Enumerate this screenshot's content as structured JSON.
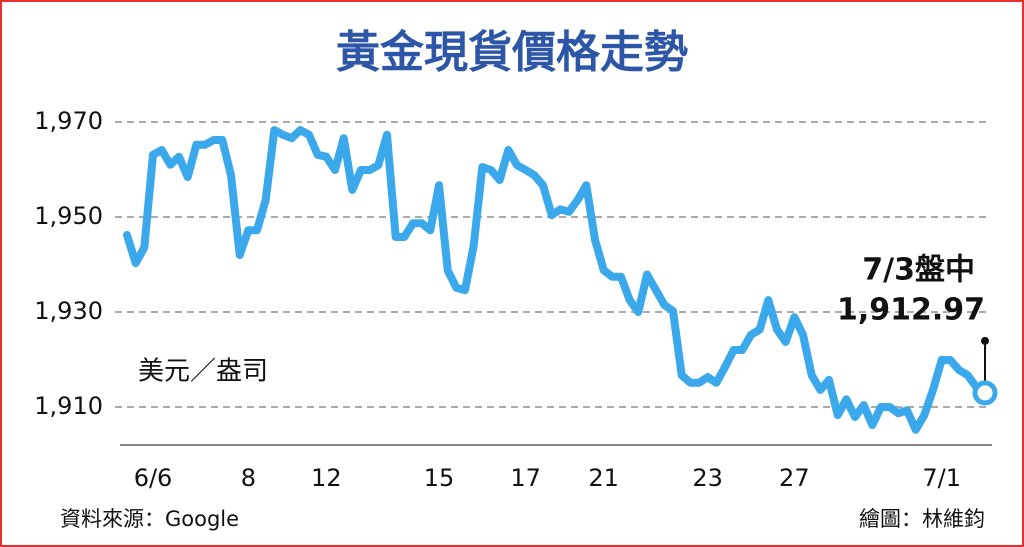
{
  "chart_data": {
    "type": "line",
    "title": "黃金現貨價格走勢",
    "y_label": "美元／盎司",
    "annotation": "7/3盤中",
    "source": "資料來源：Google",
    "credit": "繪圖：林維鈞",
    "categories": [
      null,
      null,
      null,
      "6/6",
      null,
      null,
      null,
      null,
      null,
      null,
      null,
      null,
      null,
      null,
      "8",
      null,
      null,
      null,
      null,
      null,
      null,
      null,
      null,
      "12",
      null,
      null,
      null,
      null,
      null,
      null,
      null,
      null,
      null,
      null,
      null,
      null,
      "15",
      null,
      null,
      null,
      null,
      null,
      null,
      null,
      null,
      null,
      "17",
      null,
      null,
      null,
      null,
      null,
      null,
      null,
      null,
      "21",
      null,
      null,
      null,
      null,
      null,
      null,
      null,
      null,
      null,
      null,
      null,
      "23",
      null,
      null,
      null,
      null,
      null,
      null,
      null,
      null,
      null,
      "27",
      null,
      null,
      null,
      null,
      null,
      null,
      null,
      null,
      null,
      null,
      null,
      null,
      null,
      null,
      null,
      null,
      "7/1",
      null,
      null,
      null,
      null,
      null
    ],
    "series": [
      {
        "name": "黃金現貨",
        "color": "#3aa8ea",
        "values": [
          1946.2,
          1940.3,
          1943.6,
          1963.1,
          1964.1,
          1961,
          1962.7,
          1958.4,
          1965.2,
          1965.2,
          1966.2,
          1966.2,
          1958.8,
          1942,
          1947.2,
          1947.2,
          1953.6,
          1968.3,
          1967.3,
          1966.6,
          1968.3,
          1967.3,
          1963.1,
          1962.7,
          1959.9,
          1966.6,
          1955.7,
          1959.9,
          1959.9,
          1960.9,
          1967.3,
          1945.8,
          1945.8,
          1948.7,
          1948.7,
          1947.2,
          1956.7,
          1938.8,
          1935.1,
          1934.6,
          1944,
          1960.5,
          1959.9,
          1957.8,
          1964.1,
          1960.9,
          1959.9,
          1958.8,
          1956.7,
          1950.4,
          1951.6,
          1951.1,
          1953.6,
          1956.7,
          1945.2,
          1938.8,
          1937.4,
          1937.4,
          1932.5,
          1930,
          1937.9,
          1934.7,
          1931.5,
          1930.2,
          1916.7,
          1915.1,
          1915.1,
          1916.3,
          1915.1,
          1918.4,
          1922,
          1922,
          1925.2,
          1926.3,
          1932.5,
          1926.3,
          1923.7,
          1928.9,
          1925.2,
          1916.7,
          1913.6,
          1915.7,
          1908.3,
          1911.6,
          1907.9,
          1910.4,
          1906.2,
          1910,
          1910,
          1908.7,
          1909.3,
          1905.2,
          1908.3,
          1913.6,
          1919.9,
          1919.9,
          1917.8,
          1916.7,
          1914.2,
          1912.97
        ],
        "value_labels": [
          null,
          null,
          null,
          null,
          null,
          null,
          null,
          null,
          null,
          null,
          null,
          null,
          null,
          null,
          null,
          null,
          null,
          null,
          null,
          null,
          null,
          null,
          null,
          null,
          null,
          null,
          null,
          null,
          null,
          null,
          null,
          null,
          null,
          null,
          null,
          null,
          null,
          null,
          null,
          null,
          null,
          null,
          null,
          null,
          null,
          null,
          null,
          null,
          null,
          null,
          null,
          null,
          null,
          null,
          null,
          null,
          null,
          null,
          null,
          null,
          null,
          null,
          null,
          null,
          null,
          null,
          null,
          null,
          null,
          null,
          null,
          null,
          null,
          null,
          null,
          null,
          null,
          null,
          null,
          null,
          null,
          null,
          null,
          null,
          null,
          null,
          null,
          null,
          null,
          null,
          null,
          null,
          null,
          null,
          null,
          null,
          null,
          null,
          null,
          "1,912.97"
        ]
      }
    ],
    "ylim": [
      1902,
      1974
    ],
    "yticks": [
      {
        "value": 1910,
        "label": "1,910"
      },
      {
        "value": 1930,
        "label": "1,930"
      },
      {
        "value": 1950,
        "label": "1,950"
      },
      {
        "value": 1970,
        "label": "1,970"
      }
    ],
    "grid": true
  }
}
